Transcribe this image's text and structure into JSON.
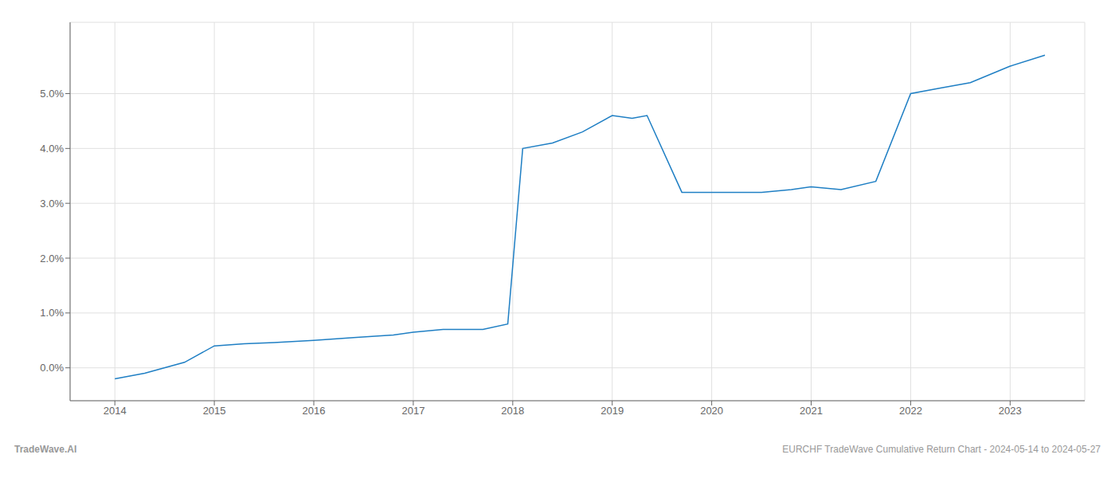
{
  "chart_data": {
    "type": "line",
    "x": [
      2014.0,
      2014.3,
      2014.7,
      2015.0,
      2015.3,
      2015.6,
      2016.0,
      2016.4,
      2016.8,
      2017.0,
      2017.3,
      2017.7,
      2017.95,
      2018.1,
      2018.4,
      2018.7,
      2019.0,
      2019.2,
      2019.35,
      2019.7,
      2020.1,
      2020.5,
      2020.8,
      2021.0,
      2021.3,
      2021.65,
      2022.0,
      2022.3,
      2022.6,
      2023.0,
      2023.35
    ],
    "values": [
      -0.002,
      -0.001,
      0.001,
      0.004,
      0.0044,
      0.0046,
      0.005,
      0.0055,
      0.006,
      0.0065,
      0.007,
      0.007,
      0.008,
      0.04,
      0.041,
      0.043,
      0.046,
      0.0455,
      0.046,
      0.032,
      0.032,
      0.032,
      0.0325,
      0.033,
      0.0325,
      0.034,
      0.05,
      0.051,
      0.052,
      0.055,
      0.057
    ],
    "color": "#1f7fc4",
    "xlim": [
      2013.55,
      2023.75
    ],
    "ylim": [
      -0.006,
      0.063
    ],
    "xticks": [
      2014,
      2015,
      2016,
      2017,
      2018,
      2019,
      2020,
      2021,
      2022,
      2023
    ],
    "yticks": [
      {
        "value": 0.0,
        "label": "0.0%"
      },
      {
        "value": 0.01,
        "label": "1.0%"
      },
      {
        "value": 0.02,
        "label": "2.0%"
      },
      {
        "value": 0.03,
        "label": "3.0%"
      },
      {
        "value": 0.04,
        "label": "4.0%"
      },
      {
        "value": 0.05,
        "label": "5.0%"
      }
    ],
    "grid": true,
    "annotations": [
      "TradeWave.AI",
      "EURCHF TradeWave Cumulative Return Chart - 2024-05-14 to 2024-05-27"
    ]
  }
}
